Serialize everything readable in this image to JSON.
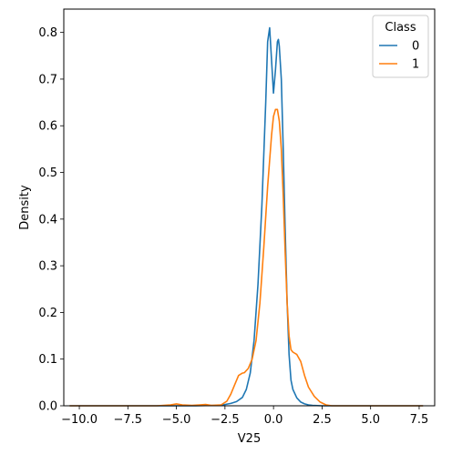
{
  "chart_data": {
    "type": "line",
    "xlabel": "V25",
    "ylabel": "Density",
    "xlim": [
      -10.8,
      8.3
    ],
    "ylim": [
      0,
      0.85
    ],
    "x_ticks": [
      -10.0,
      -7.5,
      -5.0,
      -2.5,
      0.0,
      2.5,
      5.0,
      7.5
    ],
    "x_tick_labels": [
      "−10.0",
      "−7.5",
      "−5.0",
      "−2.5",
      "0.0",
      "2.5",
      "5.0",
      "7.5"
    ],
    "y_ticks": [
      0.0,
      0.1,
      0.2,
      0.3,
      0.4,
      0.5,
      0.6,
      0.7,
      0.8
    ],
    "y_tick_labels": [
      "0.0",
      "0.1",
      "0.2",
      "0.3",
      "0.4",
      "0.5",
      "0.6",
      "0.7",
      "0.8"
    ],
    "grid": false,
    "legend": {
      "title": "Class",
      "position": "top-right"
    },
    "series": [
      {
        "name": "0",
        "color": "#1f77b4",
        "x": [
          -10.5,
          -8.0,
          -6.0,
          -4.0,
          -3.0,
          -2.6,
          -2.2,
          -1.9,
          -1.6,
          -1.4,
          -1.2,
          -1.0,
          -0.8,
          -0.6,
          -0.4,
          -0.3,
          -0.2,
          -0.1,
          0.0,
          0.1,
          0.2,
          0.25,
          0.3,
          0.4,
          0.5,
          0.6,
          0.7,
          0.8,
          0.9,
          1.0,
          1.2,
          1.4,
          1.6,
          1.8,
          2.0,
          2.5,
          3.0,
          5.0,
          7.7
        ],
        "y": [
          0.0,
          0.0,
          0.0,
          0.0,
          0.001,
          0.002,
          0.005,
          0.009,
          0.018,
          0.035,
          0.07,
          0.14,
          0.26,
          0.43,
          0.65,
          0.78,
          0.81,
          0.74,
          0.67,
          0.72,
          0.78,
          0.785,
          0.77,
          0.7,
          0.55,
          0.38,
          0.22,
          0.11,
          0.055,
          0.035,
          0.017,
          0.008,
          0.004,
          0.002,
          0.001,
          0.0,
          0.0,
          0.0,
          0.0
        ]
      },
      {
        "name": "1",
        "color": "#ff7f0e",
        "x": [
          -10.5,
          -6.0,
          -5.3,
          -5.0,
          -4.7,
          -4.2,
          -3.8,
          -3.5,
          -3.2,
          -2.7,
          -2.4,
          -2.2,
          -2.0,
          -1.8,
          -1.6,
          -1.5,
          -1.3,
          -1.1,
          -0.9,
          -0.7,
          -0.5,
          -0.3,
          -0.1,
          0.0,
          0.1,
          0.2,
          0.3,
          0.4,
          0.5,
          0.6,
          0.7,
          0.8,
          0.9,
          1.0,
          1.2,
          1.4,
          1.6,
          1.8,
          2.1,
          2.4,
          2.7,
          3.0,
          7.7
        ],
        "y": [
          0.0,
          0.0,
          0.002,
          0.004,
          0.002,
          0.001,
          0.002,
          0.003,
          0.001,
          0.002,
          0.01,
          0.025,
          0.045,
          0.065,
          0.07,
          0.071,
          0.08,
          0.1,
          0.14,
          0.22,
          0.34,
          0.47,
          0.58,
          0.62,
          0.635,
          0.635,
          0.61,
          0.55,
          0.45,
          0.33,
          0.22,
          0.15,
          0.12,
          0.115,
          0.11,
          0.095,
          0.065,
          0.04,
          0.02,
          0.008,
          0.002,
          0.0,
          0.0
        ]
      }
    ]
  }
}
